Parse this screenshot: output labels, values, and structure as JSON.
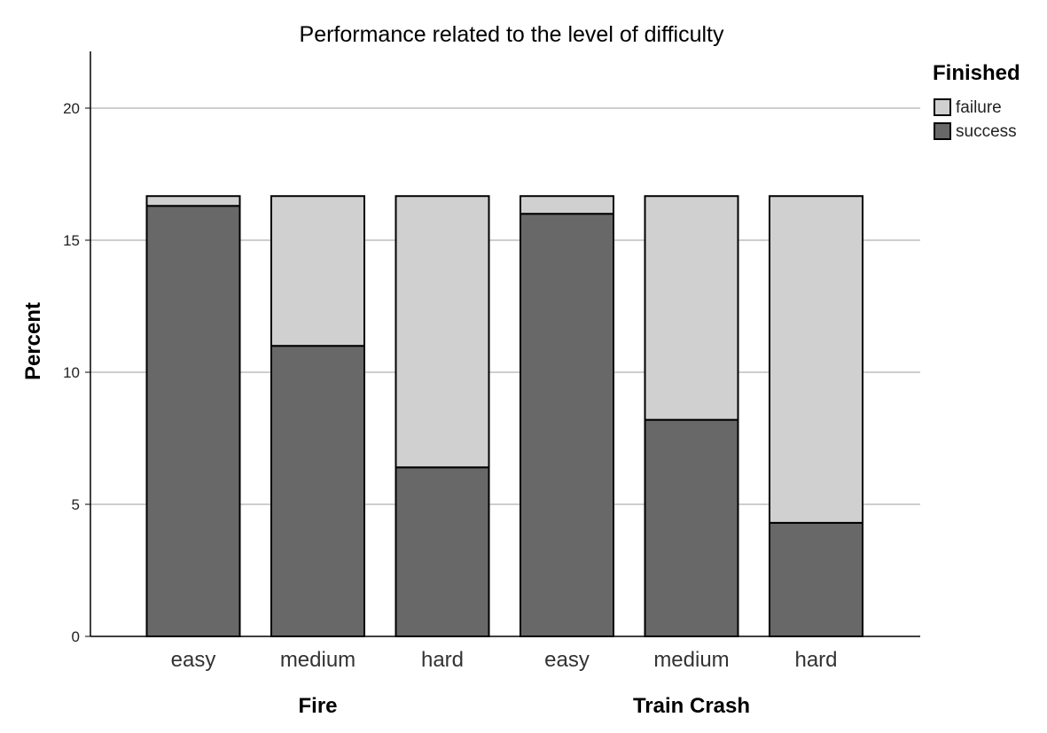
{
  "chart_data": {
    "type": "bar",
    "stacked": true,
    "title": "Performance related to the level of difficulty",
    "ylabel": "Percent",
    "ylim": [
      0,
      22
    ],
    "yticks": [
      0,
      5,
      10,
      15,
      20
    ],
    "grid": true,
    "groups": [
      {
        "label": "Fire",
        "categories": [
          "easy",
          "medium",
          "hard"
        ]
      },
      {
        "label": "Train Crash",
        "categories": [
          "easy",
          "medium",
          "hard"
        ]
      }
    ],
    "categories": [
      "easy",
      "medium",
      "hard",
      "easy",
      "medium",
      "hard"
    ],
    "series": [
      {
        "name": "success",
        "color": "#686868",
        "values": [
          16.3,
          11.0,
          6.4,
          16.0,
          8.2,
          4.3
        ]
      },
      {
        "name": "failure",
        "color": "#d0d0d0",
        "values": [
          0.37,
          5.67,
          10.27,
          0.67,
          8.47,
          12.37
        ]
      }
    ],
    "legend": {
      "title": "Finished",
      "position": "top-right",
      "order": [
        "failure",
        "success"
      ]
    }
  }
}
